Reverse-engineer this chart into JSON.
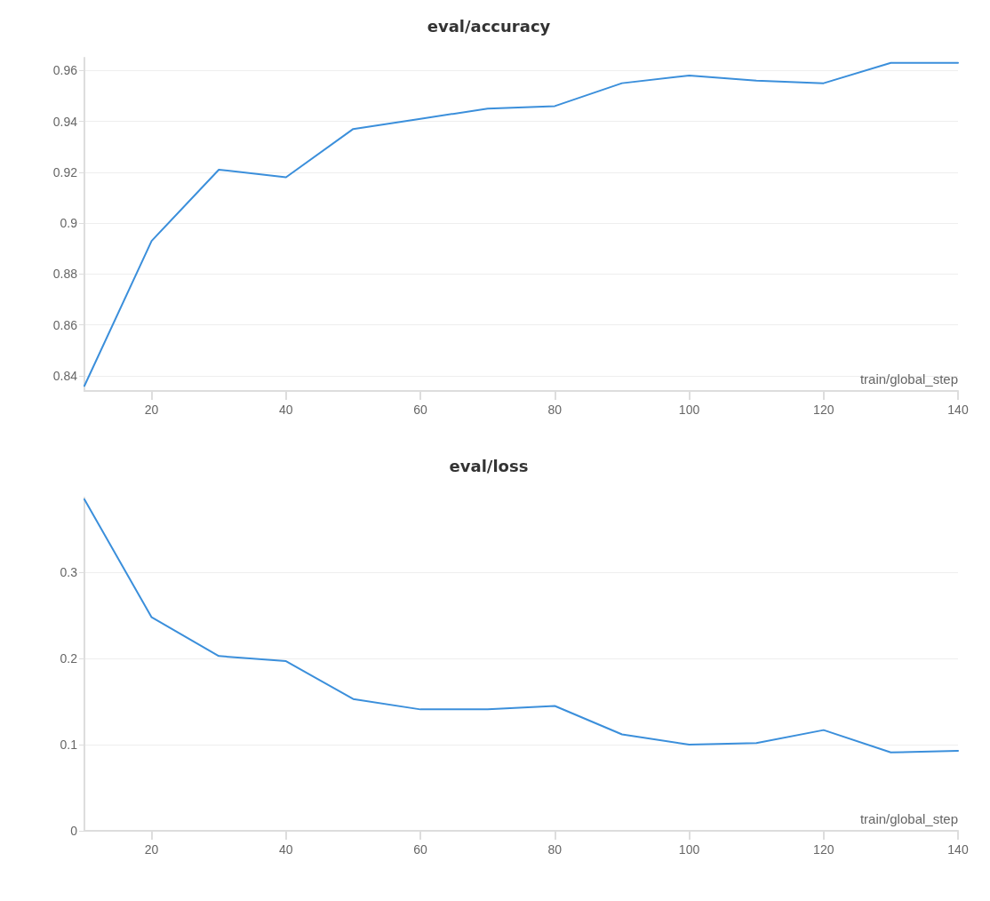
{
  "chart_data": [
    {
      "type": "line",
      "title": "eval/accuracy",
      "xlabel": "train/global_step",
      "x": [
        10,
        20,
        30,
        40,
        50,
        60,
        70,
        80,
        90,
        100,
        110,
        120,
        130,
        140
      ],
      "series": [
        {
          "color": "#3b8fdb",
          "values": [
            0.836,
            0.893,
            0.921,
            0.918,
            0.937,
            0.941,
            0.945,
            0.946,
            0.955,
            0.958,
            0.956,
            0.955,
            0.963,
            0.963
          ]
        }
      ],
      "xlim": [
        10,
        140
      ],
      "xticks": [
        20,
        40,
        60,
        80,
        100,
        120,
        140
      ],
      "ylim": [
        0.834,
        0.965
      ],
      "yticks": [
        0.84,
        0.86,
        0.88,
        0.9,
        0.92,
        0.94,
        0.96
      ],
      "grid": "y",
      "marker": "none",
      "line_style": "solid"
    },
    {
      "type": "line",
      "title": "eval/loss",
      "xlabel": "train/global_step",
      "x": [
        10,
        20,
        30,
        40,
        50,
        60,
        70,
        80,
        90,
        100,
        110,
        120,
        130,
        140
      ],
      "series": [
        {
          "color": "#3b8fdb",
          "values": [
            0.385,
            0.248,
            0.203,
            0.197,
            0.153,
            0.141,
            0.141,
            0.145,
            0.112,
            0.1,
            0.102,
            0.117,
            0.091,
            0.093
          ]
        }
      ],
      "xlim": [
        10,
        140
      ],
      "xticks": [
        20,
        40,
        60,
        80,
        100,
        120,
        140
      ],
      "ylim": [
        0,
        0.387
      ],
      "yticks": [
        0,
        0.1,
        0.2,
        0.3
      ],
      "grid": "y",
      "marker": "none",
      "line_style": "solid"
    }
  ]
}
